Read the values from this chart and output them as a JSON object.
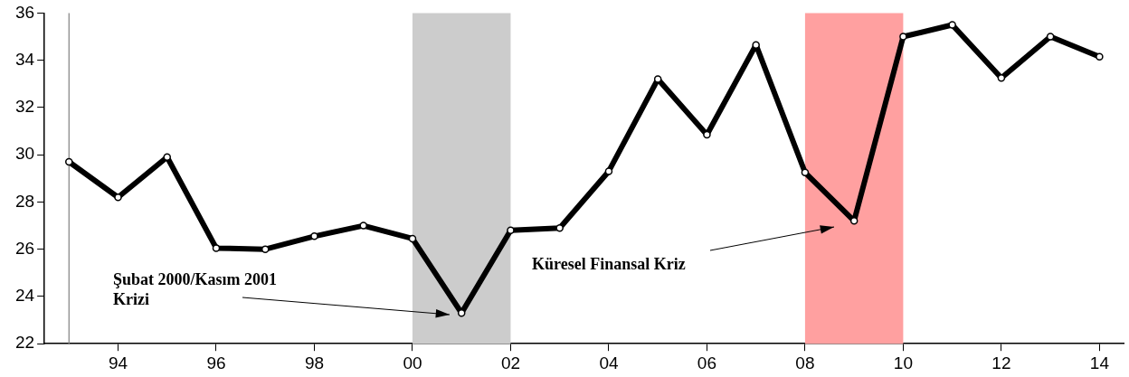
{
  "chart_data": {
    "type": "line",
    "x": [
      1993,
      1994,
      1995,
      1996,
      1997,
      1998,
      1999,
      2000,
      2001,
      2002,
      2003,
      2004,
      2005,
      2006,
      2007,
      2008,
      2009,
      2010,
      2011,
      2012,
      2013,
      2014
    ],
    "series": [
      {
        "color": "#000000",
        "values": [
          29.7,
          28.2,
          29.9,
          26.05,
          26.0,
          26.55,
          27.0,
          26.45,
          23.3,
          26.8,
          26.9,
          29.3,
          33.2,
          30.85,
          34.65,
          29.25,
          27.2,
          35.0,
          35.5,
          33.25,
          35.0,
          34.15
        ]
      }
    ],
    "xlim": [
      1992.5,
      2014.5
    ],
    "xticks": [
      {
        "value": 1994,
        "label": "94"
      },
      {
        "value": 1996,
        "label": "96"
      },
      {
        "value": 1998,
        "label": "98"
      },
      {
        "value": 2000,
        "label": "00"
      },
      {
        "value": 2002,
        "label": "02"
      },
      {
        "value": 2004,
        "label": "04"
      },
      {
        "value": 2006,
        "label": "06"
      },
      {
        "value": 2008,
        "label": "08"
      },
      {
        "value": 2010,
        "label": "10"
      },
      {
        "value": 2012,
        "label": "12"
      },
      {
        "value": 2014,
        "label": "14"
      }
    ],
    "ylim": [
      22,
      36
    ],
    "yticks": [
      22,
      24,
      26,
      28,
      30,
      32,
      34,
      36
    ],
    "bands": [
      {
        "axis": "x",
        "from": 2000,
        "to": 2002,
        "color": "#cccccc"
      },
      {
        "axis": "x",
        "from": 2008,
        "to": 2010,
        "color": "#ffa0a0"
      }
    ],
    "ref_lines": [
      {
        "axis": "x",
        "value": 1993,
        "color": "#808080"
      }
    ],
    "annotations": [
      "Şubat 2000/Kasım 2001\nKrizi",
      "Küresel Finansal Kriz"
    ],
    "marker": "circle",
    "line_style": "solid",
    "grid": false,
    "legend": false
  }
}
